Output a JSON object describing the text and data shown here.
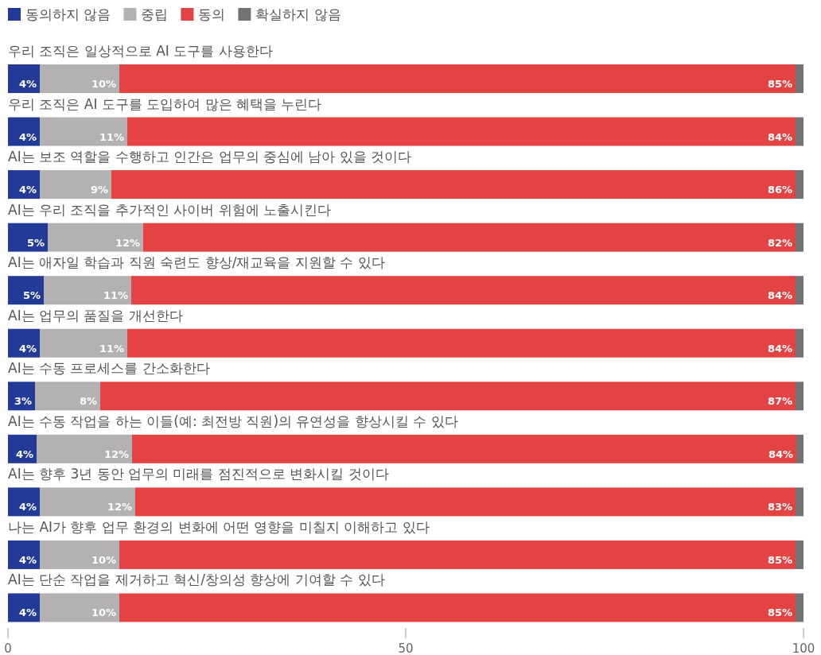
{
  "chart_data": {
    "type": "bar",
    "orientation": "horizontal",
    "stacked": true,
    "legend": "top left",
    "categories": [
      "우리 조직은 일상적으로 AI 도구를 사용한다",
      "우리 조직은 AI 도구를 도입하여 많은 혜택을 누린다",
      "AI는 보조 역할을 수행하고 인간은 업무의 중심에 남아 있을 것이다",
      "AI는 우리 조직을 추가적인 사이버 위험에 노출시킨다",
      "AI는 애자일 학습과 직원 숙련도 향상/재교육을 지원할 수 있다",
      "AI는 업무의 품질을 개선한다",
      "AI는 수동 프로세스를 간소화한다",
      "AI는 수동 작업을 하는 이들(예: 최전방 직원)의 유연성을 향상시킬 수 있다",
      "AI는 향후 3년 동안 업무의 미래를 점진적으로 변화시킬 것이다",
      "나는 AI가 향후 업무 환경의 변화에 어떤 영향을 미칠지 이해하고 있다",
      "AI는 단순 작업을 제거하고 혁신/창의성 향상에 기여할 수 있다"
    ],
    "series": [
      {
        "name": "동의하지 않음",
        "color": "#233b97",
        "values": [
          4,
          4,
          4,
          5,
          4.5,
          4,
          3.4,
          3.6,
          4,
          4,
          4
        ],
        "value_labels": [
          "4%",
          "4%",
          "4%",
          "5%",
          "5%",
          "4%",
          "3%",
          "4%",
          "4%",
          "4%",
          "4%"
        ]
      },
      {
        "name": "중립",
        "color": "#b3b1b2",
        "values": [
          10,
          11,
          9,
          12,
          11,
          11,
          8.2,
          12,
          12,
          10,
          10
        ],
        "value_labels": [
          "10%",
          "11%",
          "9%",
          "12%",
          "11%",
          "11%",
          "8%",
          "12%",
          "12%",
          "10%",
          "10%"
        ]
      },
      {
        "name": "동의",
        "color": "#e34343",
        "values": [
          85,
          84,
          86,
          82,
          83.5,
          84,
          87.4,
          83.5,
          83,
          85,
          85
        ],
        "value_labels": [
          "85%",
          "84%",
          "86%",
          "82%",
          "84%",
          "84%",
          "87%",
          "84%",
          "83%",
          "85%",
          "85%"
        ]
      },
      {
        "name": "확실하지 않음",
        "color": "#737373",
        "values": [
          1,
          1,
          1,
          1,
          1,
          1,
          1,
          0.9,
          1,
          1,
          1
        ]
      }
    ],
    "xlim": [
      0,
      100
    ],
    "xticks": [
      0,
      50,
      100
    ]
  }
}
